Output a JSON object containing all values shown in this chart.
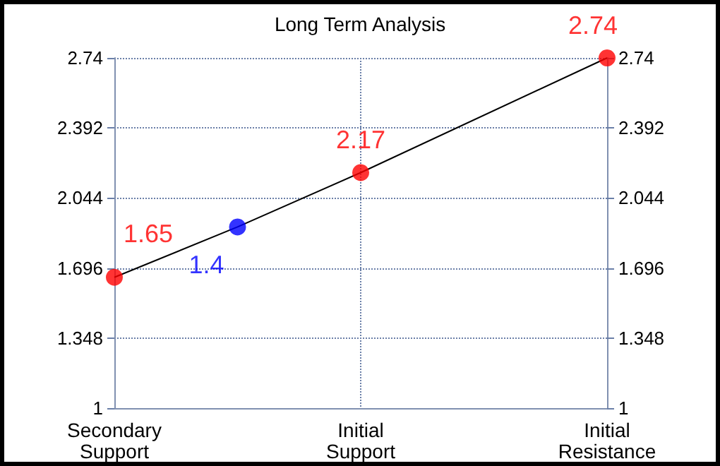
{
  "chart_data": {
    "type": "scatter",
    "title": "Long Term Analysis",
    "categories": [
      "Secondary\nSupport",
      null,
      "Initial\nSupport",
      null,
      "Initial\nResistance"
    ],
    "series": [
      {
        "type": "line",
        "color": "#000000",
        "marker": "none",
        "values": [
          1.65,
          1.9,
          2.17,
          null,
          2.74
        ]
      },
      {
        "color": "#ff0000",
        "values": [
          1.65,
          null,
          2.17,
          null,
          2.74
        ],
        "data_labels": true
      },
      {
        "color": "#0000ff",
        "values": [
          null,
          1.9,
          null,
          null,
          null
        ]
      }
    ],
    "annotations": [
      "1.4"
    ],
    "ylim": [
      1,
      2.74
    ],
    "yticks": [
      1,
      1.348,
      1.696,
      2.044,
      2.392,
      2.74
    ],
    "y2lim": [
      1,
      2.74
    ],
    "y2ticks": [
      1,
      1.348,
      1.696,
      2.044,
      2.392,
      2.74
    ],
    "grid": true,
    "marker": "circle"
  }
}
